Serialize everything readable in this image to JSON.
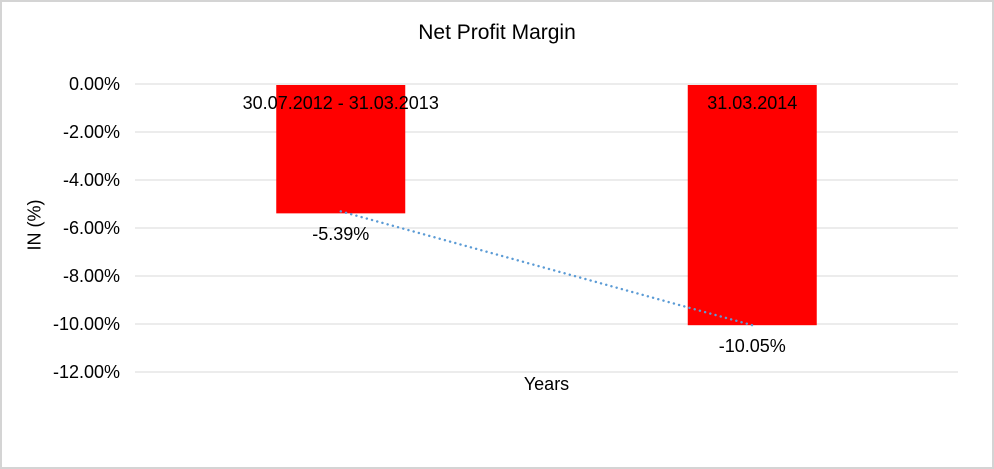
{
  "page": {
    "background_color": "#ffffff",
    "border_color": "#d4d4d4"
  },
  "chart_data": {
    "type": "bar",
    "title": "Net Profit Margin",
    "xlabel": "Years",
    "ylabel": "IN (%)",
    "categories": [
      "30.07.2012 - 31.03.2013",
      "31.03.2014"
    ],
    "values": [
      -5.39,
      -10.05
    ],
    "data_labels": [
      "-5.39%",
      "-10.05%"
    ],
    "ylim": [
      -12,
      0
    ],
    "yticks": [
      0,
      -2,
      -4,
      -6,
      -8,
      -10,
      -12
    ],
    "ytick_labels": [
      "0.00%",
      "-2.00%",
      "-4.00%",
      "-6.00%",
      "-8.00%",
      "-10.00%",
      "-12.00%"
    ],
    "grid": true,
    "legend_position": "none",
    "bar_color": "#ff0000",
    "gridline_color": "#d9d9d9",
    "trendline": {
      "style": "dotted",
      "color": "#5b9bd5",
      "from_value": -5.39,
      "to_value": -10.05
    }
  }
}
